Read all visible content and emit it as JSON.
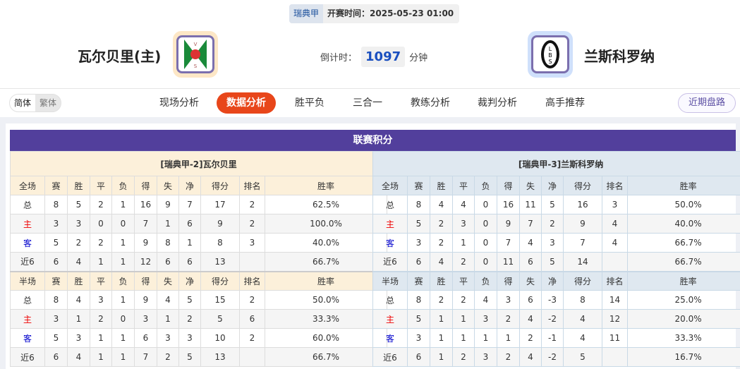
{
  "match": {
    "league": "瑞典甲",
    "kickoff": "开赛时间：2025-05-23 01:00",
    "countdown_label": "倒计时：",
    "countdown_value": "1097",
    "countdown_unit": "分钟"
  },
  "home_team": {
    "name": "瓦尔贝里(主)",
    "logo_text": "VBIS"
  },
  "away_team": {
    "name": "兰斯科罗纳",
    "logo_text": "LBS"
  },
  "lang": {
    "simplified": "简体",
    "traditional": "繁体"
  },
  "nav": {
    "items": [
      "现场分析",
      "数据分析",
      "胜平负",
      "三合一",
      "教练分析",
      "裁判分析",
      "高手推荐"
    ],
    "active": 1,
    "recent": "近期盘路"
  },
  "standings": {
    "title": "联赛积分",
    "columns_full": [
      "全场",
      "赛",
      "胜",
      "平",
      "负",
      "得",
      "失",
      "净",
      "得分",
      "排名",
      "胜率"
    ],
    "columns_half": [
      "半场",
      "赛",
      "胜",
      "平",
      "负",
      "得",
      "失",
      "净",
      "得分",
      "排名",
      "胜率"
    ],
    "home": {
      "title": "[瑞典甲-2]瓦尔贝里",
      "full": [
        [
          "总",
          "8",
          "5",
          "2",
          "1",
          "16",
          "9",
          "7",
          "17",
          "2",
          "62.5%"
        ],
        [
          "主",
          "3",
          "3",
          "0",
          "0",
          "7",
          "1",
          "6",
          "9",
          "2",
          "100.0%"
        ],
        [
          "客",
          "5",
          "2",
          "2",
          "1",
          "9",
          "8",
          "1",
          "8",
          "3",
          "40.0%"
        ],
        [
          "近6",
          "6",
          "4",
          "1",
          "1",
          "12",
          "6",
          "6",
          "13",
          "",
          "66.7%"
        ]
      ],
      "half": [
        [
          "总",
          "8",
          "4",
          "3",
          "1",
          "9",
          "4",
          "5",
          "15",
          "2",
          "50.0%"
        ],
        [
          "主",
          "3",
          "1",
          "2",
          "0",
          "3",
          "1",
          "2",
          "5",
          "6",
          "33.3%"
        ],
        [
          "客",
          "5",
          "3",
          "1",
          "1",
          "6",
          "3",
          "3",
          "10",
          "2",
          "60.0%"
        ],
        [
          "近6",
          "6",
          "4",
          "1",
          "1",
          "7",
          "2",
          "5",
          "13",
          "",
          "66.7%"
        ]
      ]
    },
    "away": {
      "title": "[瑞典甲-3]兰斯科罗纳",
      "full": [
        [
          "总",
          "8",
          "4",
          "4",
          "0",
          "16",
          "11",
          "5",
          "16",
          "3",
          "50.0%"
        ],
        [
          "主",
          "5",
          "2",
          "3",
          "0",
          "9",
          "7",
          "2",
          "9",
          "4",
          "40.0%"
        ],
        [
          "客",
          "3",
          "2",
          "1",
          "0",
          "7",
          "4",
          "3",
          "7",
          "4",
          "66.7%"
        ],
        [
          "近6",
          "6",
          "4",
          "2",
          "0",
          "11",
          "6",
          "5",
          "14",
          "",
          "66.7%"
        ]
      ],
      "half": [
        [
          "总",
          "8",
          "2",
          "2",
          "4",
          "3",
          "6",
          "-3",
          "8",
          "14",
          "25.0%"
        ],
        [
          "主",
          "5",
          "1",
          "1",
          "3",
          "2",
          "4",
          "-2",
          "4",
          "12",
          "20.0%"
        ],
        [
          "客",
          "3",
          "1",
          "1",
          "1",
          "1",
          "2",
          "-1",
          "4",
          "11",
          "33.3%"
        ],
        [
          "近6",
          "6",
          "1",
          "2",
          "3",
          "2",
          "4",
          "-2",
          "5",
          "",
          "16.7%"
        ]
      ]
    }
  },
  "colors": {
    "accent": "#e8461a",
    "banner": "#523f9c",
    "home_label": "#ee0000",
    "away_label": "#0000cc"
  }
}
